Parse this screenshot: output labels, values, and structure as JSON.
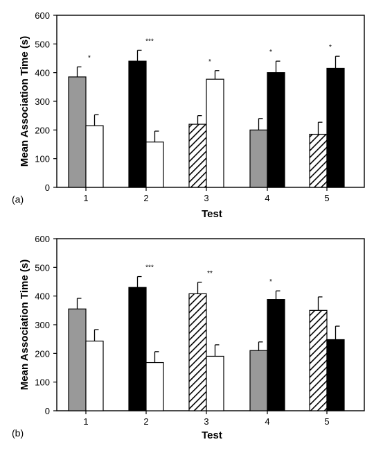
{
  "chart_data": [
    {
      "type": "bar",
      "panel_label": "(a)",
      "xlabel": "Test",
      "ylabel": "Mean Association Time (s)",
      "ylim": [
        0,
        600
      ],
      "yticks": [
        0,
        100,
        200,
        300,
        400,
        500,
        600
      ],
      "categories": [
        "1",
        "2",
        "3",
        "4",
        "5"
      ],
      "bars": [
        {
          "category": "1",
          "fill": "grey",
          "value": 385,
          "error": 35
        },
        {
          "category": "1",
          "fill": "white",
          "value": 215,
          "error": 38
        },
        {
          "category": "2",
          "fill": "black",
          "value": 440,
          "error": 38
        },
        {
          "category": "2",
          "fill": "white",
          "value": 158,
          "error": 38
        },
        {
          "category": "3",
          "fill": "hatched",
          "value": 220,
          "error": 30
        },
        {
          "category": "3",
          "fill": "white",
          "value": 377,
          "error": 30
        },
        {
          "category": "4",
          "fill": "grey",
          "value": 200,
          "error": 40
        },
        {
          "category": "4",
          "fill": "black",
          "value": 400,
          "error": 40
        },
        {
          "category": "5",
          "fill": "hatched",
          "value": 185,
          "error": 42
        },
        {
          "category": "5",
          "fill": "black",
          "value": 415,
          "error": 42
        }
      ],
      "significance": [
        {
          "category": "1",
          "label": "*"
        },
        {
          "category": "2",
          "label": "***"
        },
        {
          "category": "3",
          "label": "*"
        },
        {
          "category": "4",
          "label": "*"
        },
        {
          "category": "5",
          "label": "*"
        }
      ]
    },
    {
      "type": "bar",
      "panel_label": "(b)",
      "xlabel": "Test",
      "ylabel": "Mean Association Time (s)",
      "ylim": [
        0,
        600
      ],
      "yticks": [
        0,
        100,
        200,
        300,
        400,
        500,
        600
      ],
      "categories": [
        "1",
        "2",
        "3",
        "4",
        "5"
      ],
      "bars": [
        {
          "category": "1",
          "fill": "grey",
          "value": 355,
          "error": 37
        },
        {
          "category": "1",
          "fill": "white",
          "value": 243,
          "error": 40
        },
        {
          "category": "2",
          "fill": "black",
          "value": 430,
          "error": 38
        },
        {
          "category": "2",
          "fill": "white",
          "value": 168,
          "error": 38
        },
        {
          "category": "3",
          "fill": "hatched",
          "value": 408,
          "error": 40
        },
        {
          "category": "3",
          "fill": "white",
          "value": 190,
          "error": 40
        },
        {
          "category": "4",
          "fill": "grey",
          "value": 210,
          "error": 30
        },
        {
          "category": "4",
          "fill": "black",
          "value": 388,
          "error": 30
        },
        {
          "category": "5",
          "fill": "hatched",
          "value": 350,
          "error": 47
        },
        {
          "category": "5",
          "fill": "black",
          "value": 248,
          "error": 47
        }
      ],
      "significance": [
        {
          "category": "2",
          "label": "***"
        },
        {
          "category": "3",
          "label": "**"
        },
        {
          "category": "4",
          "label": "*"
        }
      ]
    }
  ],
  "colors": {
    "grey": "#999999",
    "black": "#000000",
    "white": "#ffffff",
    "hatch_line": "#000000",
    "outline": "#000000"
  }
}
